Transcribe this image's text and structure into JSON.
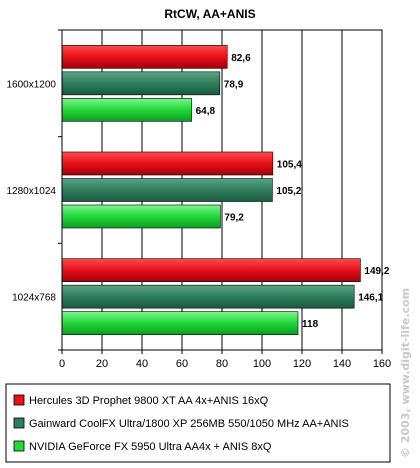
{
  "chart_data": {
    "type": "bar",
    "orientation": "horizontal",
    "title": "RtCW, AA+ANIS",
    "xlabel": "",
    "ylabel": "",
    "xlim": [
      0,
      160
    ],
    "x_ticks": [
      "0",
      "20",
      "40",
      "60",
      "80",
      "100",
      "120",
      "140",
      "160"
    ],
    "grid": true,
    "legend_position": "bottom",
    "categories": [
      "1600x1200",
      "1280x1024",
      "1024x768"
    ],
    "series": [
      {
        "name": "Hercules 3D Prophet 9800 XT AA 4x+ANIS 16xQ",
        "color": "#e8101a",
        "values": [
          82.6,
          105.4,
          149.2
        ],
        "labels": [
          "82,6",
          "105,4",
          "149,2"
        ]
      },
      {
        "name": "Gainward CoolFX Ultra/1800 XP 256MB 550/1050 MHz AA+ANIS",
        "color": "#2e7d5c",
        "values": [
          78.9,
          105.2,
          146.1
        ],
        "labels": [
          "78,9",
          "105,2",
          "146,1"
        ]
      },
      {
        "name": "NVIDIA GeForce FX 5950 Ultra AA4x + ANIS 8xQ",
        "color": "#20d83a",
        "values": [
          64.8,
          79.2,
          118
        ],
        "labels": [
          "64,8",
          "79,2",
          "118"
        ]
      }
    ]
  },
  "watermark": "© 2003, www.digit-life.com"
}
